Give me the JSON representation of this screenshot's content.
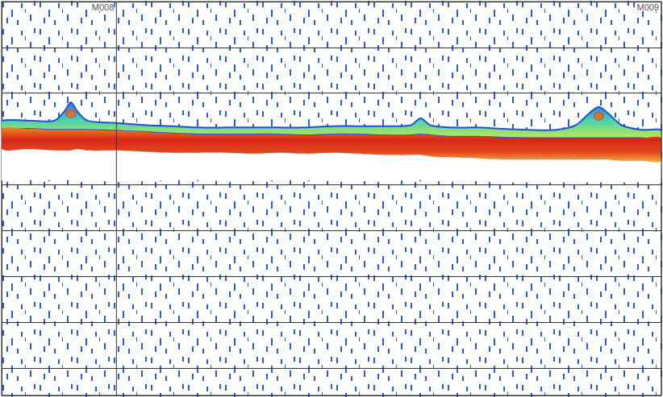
{
  "chart_data": {
    "type": "echogram",
    "annotations": [
      {
        "text": "M008",
        "x": 17.4
      },
      {
        "text": "M009",
        "x": 100
      }
    ],
    "x": [
      0,
      4,
      8,
      9.5,
      10.5,
      11.5,
      13,
      17.4,
      22,
      26,
      30,
      34,
      38,
      42,
      46,
      50,
      54,
      58,
      62,
      63.5,
      65,
      68,
      72,
      76,
      80,
      84,
      87,
      89,
      90.5,
      92,
      94,
      97,
      100
    ],
    "echo_top": [
      2.6,
      2.6,
      2.6,
      2.4,
      2.2,
      2.4,
      2.6,
      2.65,
      2.7,
      2.72,
      2.75,
      2.75,
      2.75,
      2.75,
      2.75,
      2.72,
      2.72,
      2.72,
      2.7,
      2.55,
      2.7,
      2.75,
      2.75,
      2.78,
      2.8,
      2.8,
      2.7,
      2.45,
      2.3,
      2.45,
      2.7,
      2.8,
      2.8
    ],
    "core_top": [
      2.78,
      2.78,
      2.8,
      2.8,
      2.8,
      2.8,
      2.8,
      2.82,
      2.85,
      2.88,
      2.9,
      2.9,
      2.9,
      2.9,
      2.92,
      2.9,
      2.9,
      2.92,
      2.92,
      2.9,
      2.92,
      2.95,
      2.95,
      2.97,
      2.98,
      2.98,
      2.98,
      2.98,
      2.98,
      2.98,
      2.98,
      2.98,
      2.98
    ],
    "core_bottom": [
      3.22,
      3.22,
      3.25,
      3.25,
      3.25,
      3.22,
      3.25,
      3.25,
      3.28,
      3.3,
      3.3,
      3.3,
      3.32,
      3.3,
      3.32,
      3.3,
      3.32,
      3.35,
      3.35,
      3.35,
      3.38,
      3.4,
      3.42,
      3.45,
      3.45,
      3.45,
      3.45,
      3.45,
      3.45,
      3.45,
      3.48,
      3.48,
      3.48
    ],
    "shadow_bottom": [
      3.9,
      3.9,
      3.9,
      3.9,
      3.9,
      3.9,
      3.92,
      3.92,
      3.92,
      3.9,
      3.9,
      3.92,
      3.92,
      3.9,
      3.9,
      3.92,
      3.92,
      3.92,
      3.9,
      3.9,
      3.92,
      3.92,
      3.92,
      3.95,
      3.95,
      3.95,
      3.95,
      3.95,
      3.95,
      3.95,
      3.95,
      3.95,
      3.95
    ],
    "schools": [
      {
        "x": 10.5,
        "depth": 2.45
      },
      {
        "x": 90.5,
        "depth": 2.5
      }
    ],
    "xlim": [
      0,
      100
    ],
    "ylim": [
      0,
      8.6
    ],
    "yticks": [
      1,
      2,
      3,
      4,
      5,
      6,
      7,
      8
    ],
    "grid": true,
    "tick_labels": false
  }
}
